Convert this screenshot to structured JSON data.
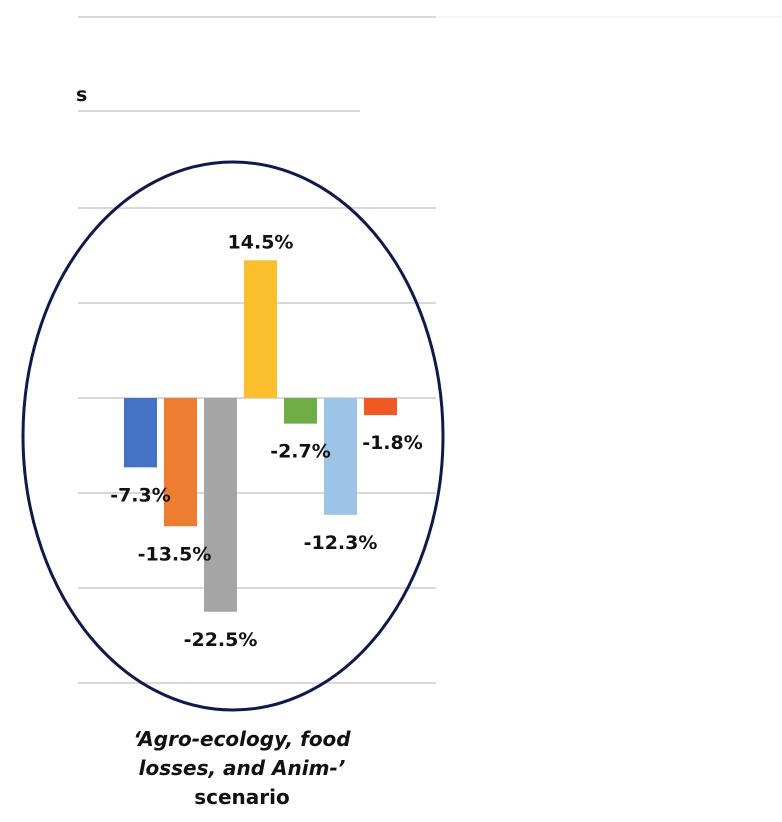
{
  "chart_data": {
    "type": "bar",
    "title_fragment": "s",
    "scenario_label": {
      "line1": "‘Agro-ecology, food",
      "line2": "losses, and Anim-’",
      "line3": "scenario"
    },
    "ylim": [
      -30,
      20
    ],
    "series": [
      {
        "value": -7.3,
        "label": "-7.3%",
        "color": "#4472C4"
      },
      {
        "value": -13.5,
        "label": "-13.5%",
        "color": "#ED7D31"
      },
      {
        "value": -22.5,
        "label": "-22.5%",
        "color": "#A5A5A5"
      },
      {
        "value": 14.5,
        "label": "14.5%",
        "color": "#FBBF2E"
      },
      {
        "value": -2.7,
        "label": "-2.7%",
        "color": "#70AD47"
      },
      {
        "value": -12.3,
        "label": "-12.3%",
        "color": "#9DC3E6"
      },
      {
        "value": -1.8,
        "label": "-1.8%",
        "color": "#F05A22"
      }
    ],
    "grid": true,
    "highlight_ellipse_color": "#0E1A4D"
  }
}
